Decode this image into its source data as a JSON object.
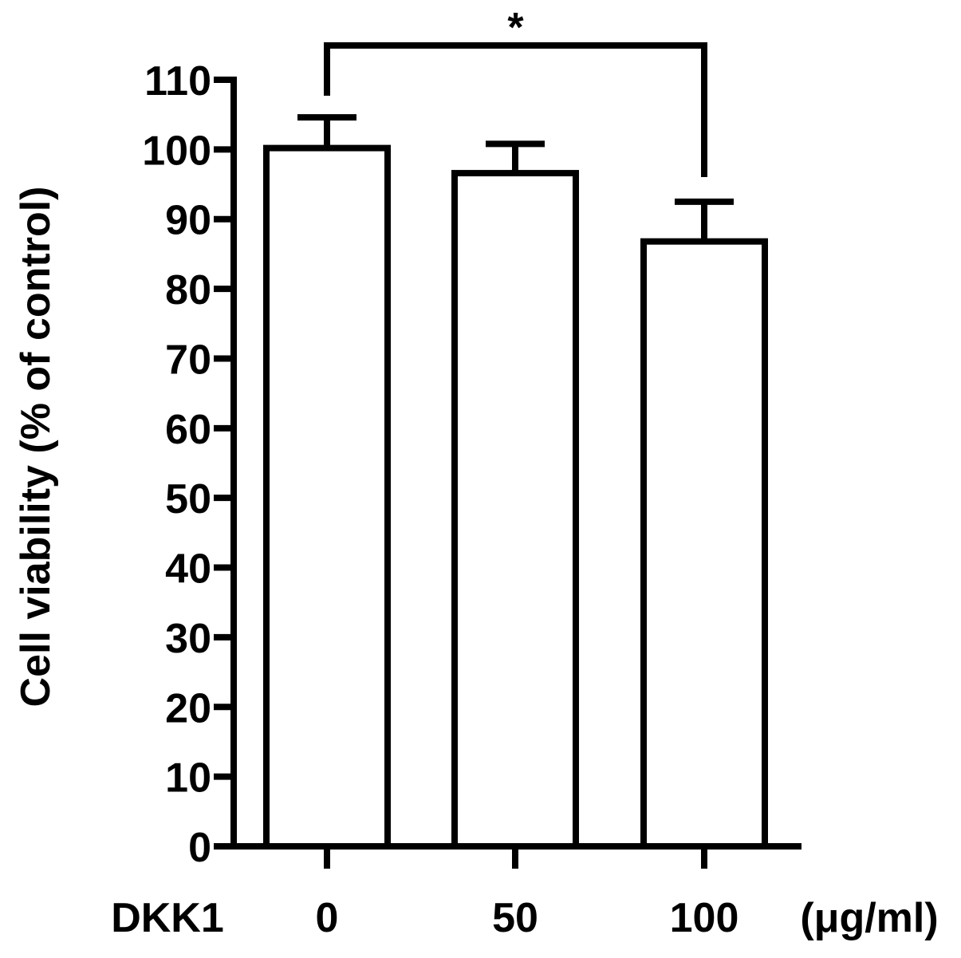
{
  "chart_data": {
    "type": "bar",
    "title": "",
    "ylabel": "Cell viability  (% of control)",
    "xlabel": "",
    "group_label": "DKK1",
    "unit_label": "(μg/ml)",
    "categories": [
      "0",
      "50",
      "100"
    ],
    "series": [
      {
        "values": [
          100.2,
          96.6,
          86.8
        ],
        "error": [
          4.4,
          4.2,
          5.7
        ]
      }
    ],
    "ylim": [
      0,
      110
    ],
    "yticks": [
      0,
      10,
      20,
      30,
      40,
      50,
      60,
      70,
      80,
      90,
      100,
      110
    ],
    "grid": false,
    "legend": "none",
    "bar_fill": "#ffffff",
    "stroke_color": "#000000",
    "significance": [
      {
        "from": 0,
        "to": 2,
        "label": "*"
      }
    ]
  }
}
